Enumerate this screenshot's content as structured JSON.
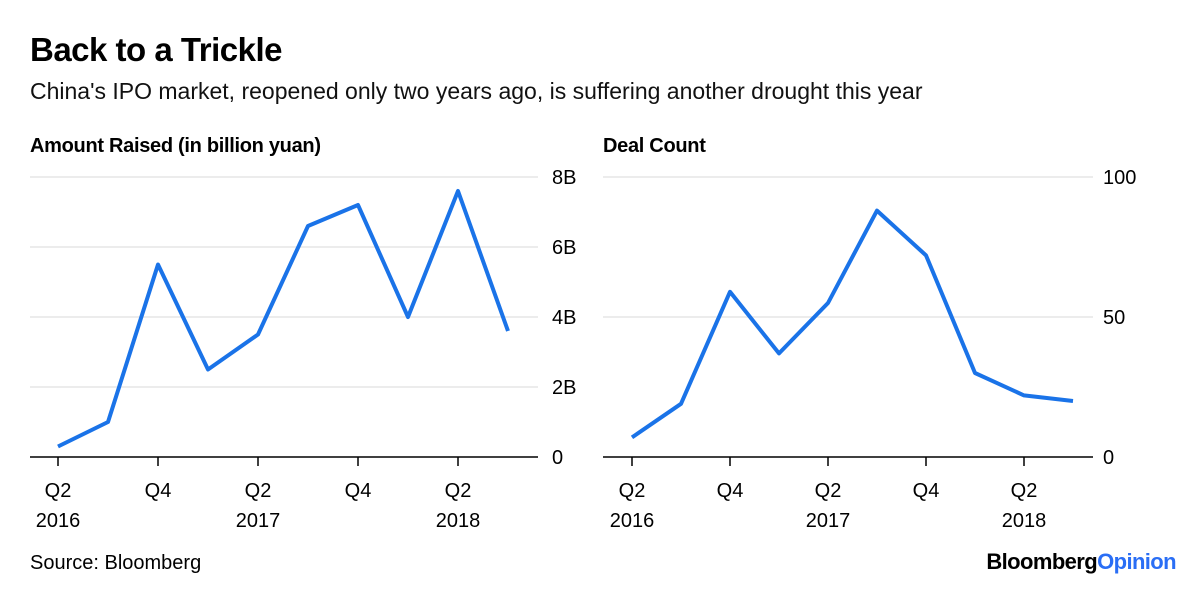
{
  "header": {
    "title": "Back to a Trickle",
    "subtitle": "China's IPO market, reopened only two years ago, is suffering another drought this year"
  },
  "footer": {
    "source": "Source: Bloomberg",
    "brand_primary": "Bloomberg",
    "brand_secondary": "Opinion"
  },
  "colors": {
    "line": "#1a73e8",
    "grid": "#e6e6e6",
    "axis": "#000000",
    "brand_accent": "#2a6ef5"
  },
  "chart_data": [
    {
      "type": "line",
      "title": "Amount Raised (in billion yuan)",
      "x": [
        "Q2 2016",
        "Q3 2016",
        "Q4 2016",
        "Q1 2017",
        "Q2 2017",
        "Q3 2017",
        "Q4 2017",
        "Q1 2018",
        "Q2 2018",
        "Q3 2018"
      ],
      "values": [
        0.3,
        1.0,
        5.5,
        2.5,
        3.5,
        6.6,
        7.2,
        4.0,
        7.6,
        3.6
      ],
      "ylim": [
        0,
        8
      ],
      "yticks": [
        0,
        2,
        4,
        6,
        8
      ],
      "ytick_labels": [
        "0",
        "2B",
        "4B",
        "6B",
        "8B"
      ],
      "xtick_positions": [
        0,
        2,
        4,
        6,
        8
      ],
      "xtick_labels": [
        [
          "Q2",
          "2016"
        ],
        [
          "Q4",
          ""
        ],
        [
          "Q2",
          "2017"
        ],
        [
          "Q4",
          ""
        ],
        [
          "Q2",
          "2018"
        ]
      ],
      "xlabel": "",
      "ylabel": "",
      "grid": true
    },
    {
      "type": "line",
      "title": "Deal Count",
      "x": [
        "Q2 2016",
        "Q3 2016",
        "Q4 2016",
        "Q1 2017",
        "Q2 2017",
        "Q3 2017",
        "Q4 2017",
        "Q1 2018",
        "Q2 2018",
        "Q3 2018"
      ],
      "values": [
        7,
        19,
        59,
        37,
        55,
        88,
        72,
        30,
        22,
        20
      ],
      "ylim": [
        0,
        100
      ],
      "yticks": [
        0,
        50,
        100
      ],
      "ytick_labels": [
        "0",
        "50",
        "100"
      ],
      "xtick_positions": [
        0,
        2,
        4,
        6,
        8
      ],
      "xtick_labels": [
        [
          "Q2",
          "2016"
        ],
        [
          "Q4",
          ""
        ],
        [
          "Q2",
          "2017"
        ],
        [
          "Q4",
          ""
        ],
        [
          "Q2",
          "2018"
        ]
      ],
      "xlabel": "",
      "ylabel": "",
      "grid": true
    }
  ]
}
